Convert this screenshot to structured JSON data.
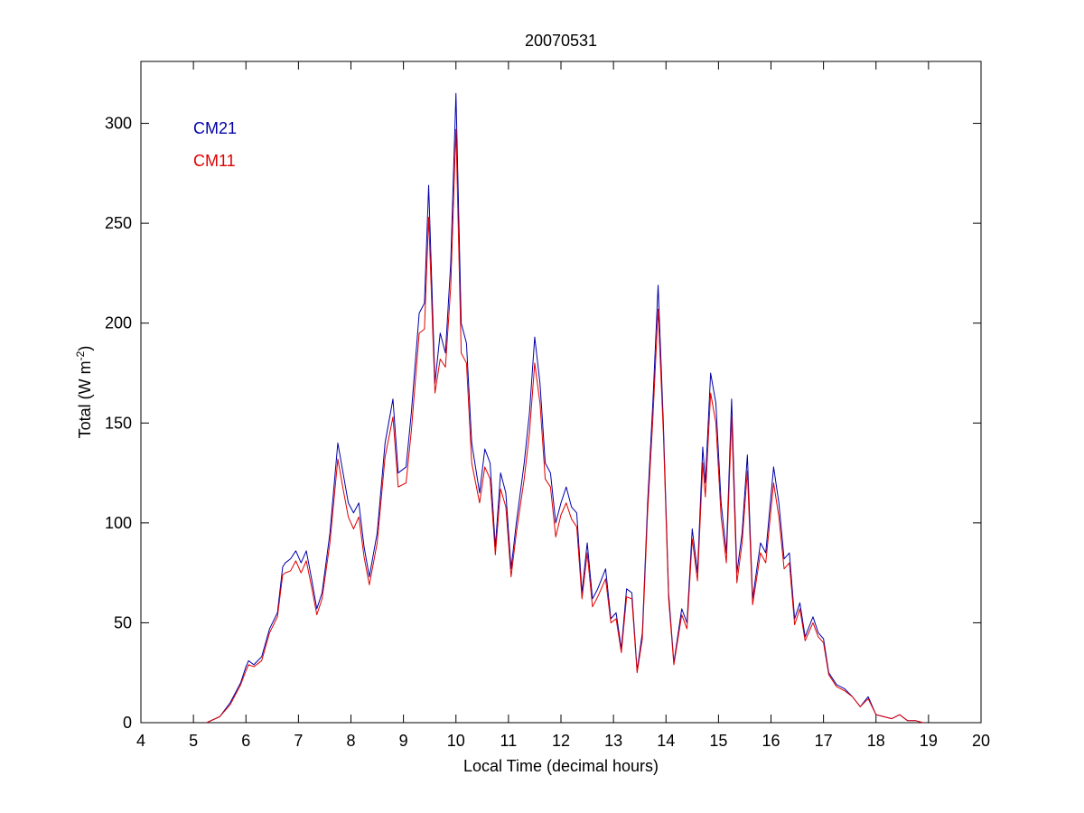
{
  "chart_data": {
    "type": "line",
    "title": "20070531",
    "xlabel": "Local Time (decimal hours)",
    "ylabel": {
      "text": "Total (W m",
      "superscript": "-2",
      "tail": ")"
    },
    "x": [
      5.25,
      5.5,
      5.7,
      5.9,
      6.0,
      6.05,
      6.15,
      6.3,
      6.45,
      6.6,
      6.7,
      6.75,
      6.85,
      6.95,
      7.05,
      7.15,
      7.25,
      7.35,
      7.45,
      7.6,
      7.75,
      7.85,
      7.95,
      8.05,
      8.15,
      8.25,
      8.35,
      8.5,
      8.65,
      8.8,
      8.9,
      9.05,
      9.15,
      9.3,
      9.4,
      9.48,
      9.6,
      9.7,
      9.8,
      9.9,
      10.0,
      10.1,
      10.2,
      10.3,
      10.45,
      10.55,
      10.65,
      10.75,
      10.85,
      10.95,
      11.05,
      11.15,
      11.3,
      11.4,
      11.5,
      11.6,
      11.7,
      11.8,
      11.9,
      12.0,
      12.1,
      12.2,
      12.3,
      12.4,
      12.5,
      12.6,
      12.7,
      12.85,
      12.95,
      13.05,
      13.15,
      13.25,
      13.35,
      13.45,
      13.55,
      13.65,
      13.75,
      13.85,
      13.95,
      14.05,
      14.15,
      14.3,
      14.4,
      14.5,
      14.6,
      14.7,
      14.75,
      14.85,
      14.95,
      15.05,
      15.15,
      15.25,
      15.35,
      15.45,
      15.55,
      15.65,
      15.8,
      15.9,
      16.05,
      16.15,
      16.25,
      16.35,
      16.45,
      16.55,
      16.65,
      16.8,
      16.9,
      17.0,
      17.1,
      17.25,
      17.4,
      17.55,
      17.7,
      17.85,
      18.0,
      18.15,
      18.3,
      18.45,
      18.6,
      18.75,
      18.9
    ],
    "series": [
      {
        "name": "CM21",
        "color": "#0000a8",
        "values": [
          0,
          3,
          10,
          20,
          28,
          31,
          29,
          33,
          47,
          55,
          78,
          80,
          82,
          86,
          80,
          86,
          72,
          57,
          65,
          95,
          140,
          125,
          110,
          105,
          110,
          88,
          73,
          95,
          140,
          162,
          125,
          128,
          155,
          205,
          210,
          269,
          170,
          195,
          185,
          230,
          315,
          200,
          190,
          140,
          115,
          137,
          130,
          88,
          125,
          115,
          77,
          100,
          130,
          155,
          193,
          170,
          130,
          125,
          100,
          110,
          118,
          108,
          105,
          65,
          90,
          62,
          67,
          77,
          52,
          55,
          37,
          67,
          65,
          26,
          45,
          110,
          160,
          219,
          150,
          65,
          30,
          57,
          50,
          97,
          75,
          138,
          120,
          175,
          160,
          110,
          85,
          162,
          75,
          95,
          134,
          62,
          90,
          85,
          128,
          110,
          82,
          85,
          52,
          60,
          43,
          53,
          45,
          42,
          25,
          19,
          17,
          13,
          8,
          13,
          4,
          3,
          2,
          4,
          1,
          1,
          0
        ]
      },
      {
        "name": "CM11",
        "color": "#e00000",
        "values": [
          0,
          3,
          9,
          19,
          26,
          29,
          28,
          31,
          45,
          53,
          74,
          75,
          76,
          81,
          75,
          81,
          68,
          54,
          62,
          90,
          132,
          117,
          103,
          97,
          103,
          83,
          69,
          90,
          133,
          153,
          118,
          120,
          146,
          195,
          197,
          253,
          165,
          182,
          178,
          218,
          297,
          185,
          180,
          130,
          110,
          128,
          122,
          84,
          117,
          108,
          73,
          95,
          122,
          145,
          180,
          160,
          122,
          118,
          93,
          104,
          110,
          102,
          98,
          62,
          85,
          58,
          63,
          72,
          50,
          52,
          35,
          63,
          62,
          25,
          42,
          105,
          152,
          207,
          145,
          62,
          29,
          54,
          47,
          92,
          71,
          130,
          113,
          165,
          150,
          103,
          80,
          153,
          70,
          90,
          126,
          59,
          85,
          80,
          120,
          103,
          77,
          80,
          49,
          57,
          41,
          50,
          43,
          40,
          24,
          18,
          16,
          13,
          8,
          12,
          4,
          3,
          2,
          4,
          1,
          1,
          0
        ]
      }
    ],
    "xlim": [
      4,
      20
    ],
    "xticks": [
      4,
      5,
      6,
      7,
      8,
      9,
      10,
      11,
      12,
      13,
      14,
      15,
      16,
      17,
      18,
      19,
      20
    ],
    "ylim": [
      0,
      331
    ],
    "yticks": [
      0,
      50,
      100,
      150,
      200,
      250,
      300
    ],
    "grid": false,
    "legend": "upper left"
  }
}
